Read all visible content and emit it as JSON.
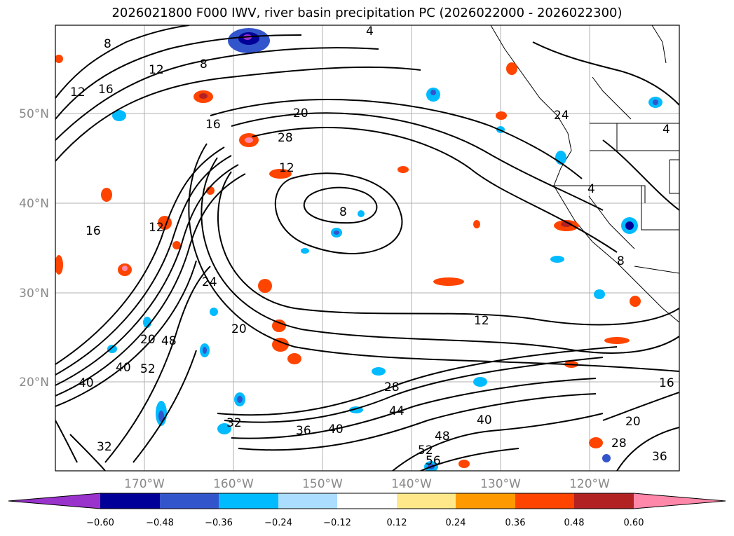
{
  "title": "2026021800 F000 IWV, river basin precipitation PC (2026022000 - 2026022300)",
  "latitude_labels": [
    "50°N",
    "40°N",
    "30°N",
    "20°N"
  ],
  "longitude_labels": [
    "170°W",
    "160°W",
    "150°W",
    "140°W",
    "130°W",
    "120°W"
  ],
  "contour_labels": [
    "8",
    "12",
    "16",
    "4",
    "8",
    "20",
    "16",
    "28",
    "12",
    "8",
    "12",
    "16",
    "24",
    "20",
    "12",
    "20",
    "48",
    "40",
    "52",
    "40",
    "32",
    "32",
    "36",
    "40",
    "28",
    "44",
    "40",
    "48",
    "52",
    "56",
    "20",
    "28",
    "36",
    "16",
    "4",
    "24",
    "8",
    "12",
    "4"
  ],
  "colorbar": {
    "ticks": [
      "−0.60",
      "−0.48",
      "−0.36",
      "−0.24",
      "−0.12",
      "0.12",
      "0.24",
      "0.36",
      "0.48",
      "0.60"
    ],
    "colors": [
      "#9933cc",
      "#000099",
      "#3355cc",
      "#00bbff",
      "#aaddff",
      "#ffffff",
      "#ffe88a",
      "#ff9900",
      "#ff4400",
      "#b22222",
      "#ff88aa"
    ]
  }
}
